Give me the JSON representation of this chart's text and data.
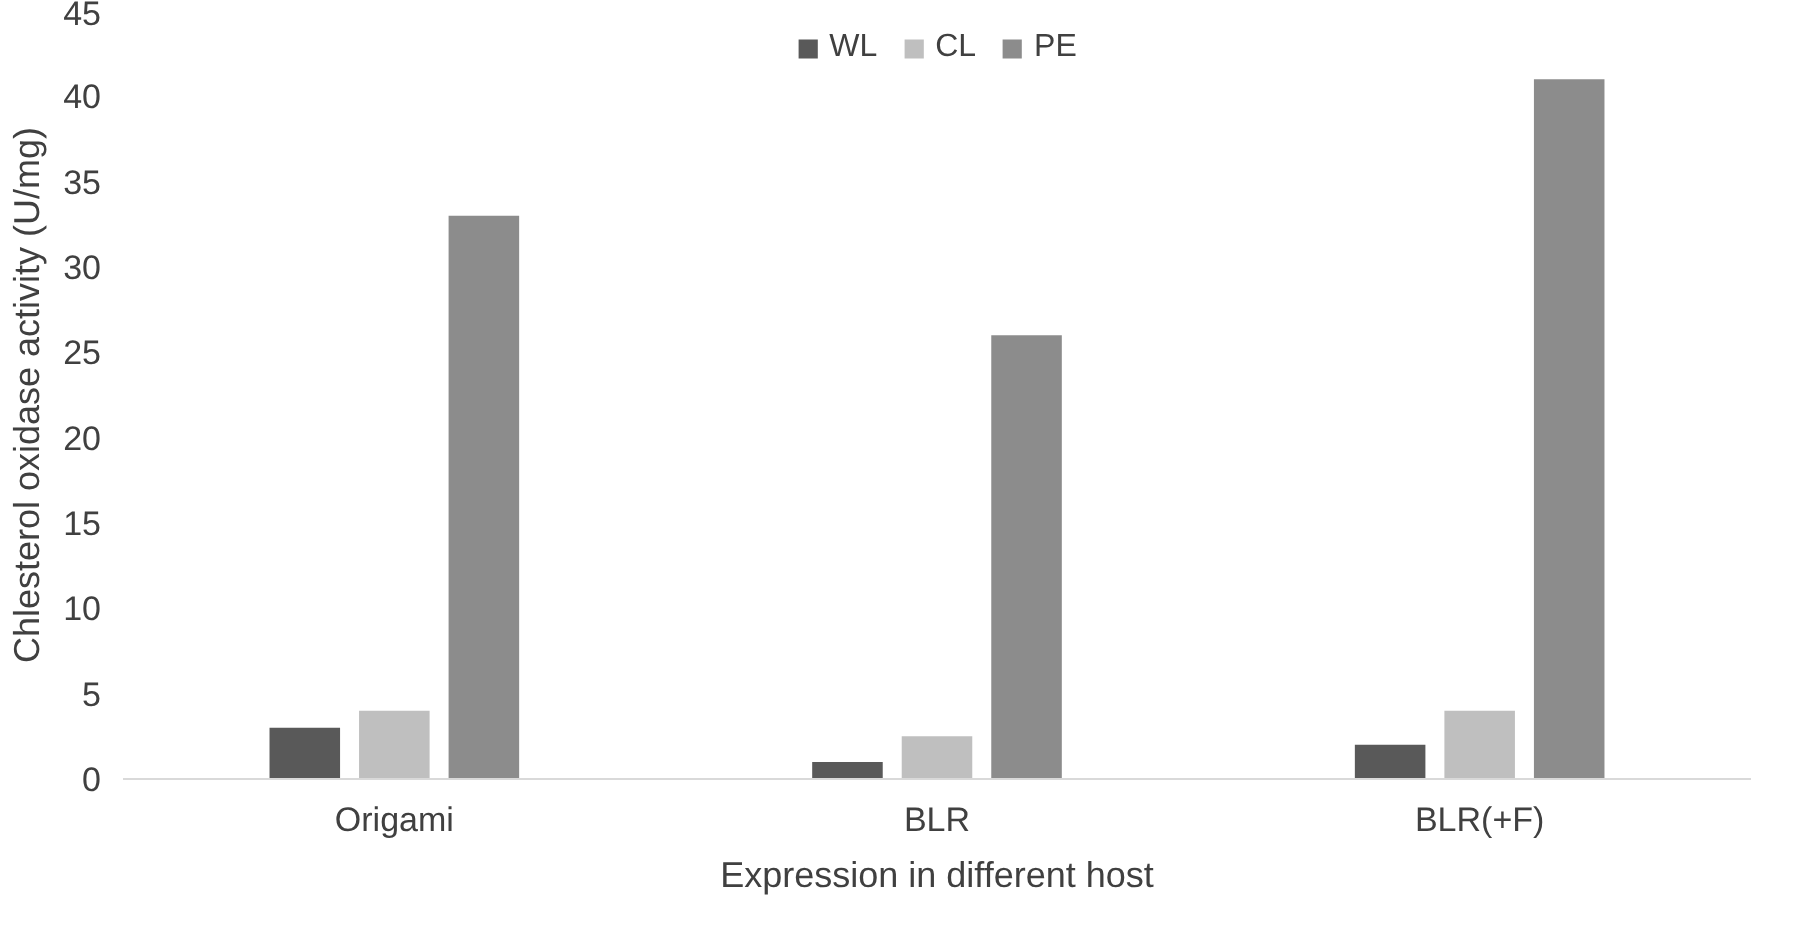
{
  "chart_data": {
    "type": "bar",
    "xlabel": "Expression in different host",
    "ylabel": "Chlesterol oxidase activity (U/mg)",
    "categories": [
      "Origami",
      "BLR",
      "BLR(+F)"
    ],
    "series": [
      {
        "name": "WL",
        "color": "#595959",
        "values": [
          3,
          1,
          2
        ]
      },
      {
        "name": "CL",
        "color": "#bfbfbf",
        "values": [
          4,
          2.5,
          4
        ]
      },
      {
        "name": "PE",
        "color": "#8c8c8c",
        "values": [
          33,
          26,
          41
        ]
      }
    ],
    "ylim": [
      0,
      45
    ],
    "yticks": [
      0,
      5,
      10,
      15,
      20,
      25,
      30,
      35,
      40,
      45
    ],
    "grid": false,
    "legend": "top"
  }
}
